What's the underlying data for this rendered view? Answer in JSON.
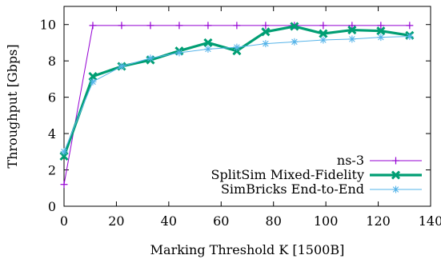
{
  "chart_data": {
    "type": "line",
    "title": "",
    "xlabel": "Marking Threshold K [1500B]",
    "ylabel": "Throughput [Gbps]",
    "xlim": [
      0,
      140
    ],
    "ylim": [
      0,
      11
    ],
    "xticks": [
      "0",
      "20",
      "40",
      "60",
      "80",
      "100",
      "120",
      "140"
    ],
    "yticks": [
      "0",
      "2",
      "4",
      "6",
      "8",
      "10"
    ],
    "grid": false,
    "legend_position": "bottom-right",
    "series": [
      {
        "name": "ns-3",
        "color": "#9400d3",
        "marker": "plus",
        "x": [
          0,
          11,
          22,
          33,
          44,
          55,
          66,
          77,
          88,
          99,
          110,
          121,
          132
        ],
        "y": [
          1.2,
          9.95,
          9.95,
          9.95,
          9.95,
          9.95,
          9.95,
          9.95,
          9.95,
          9.95,
          9.95,
          9.95,
          9.95
        ]
      },
      {
        "name": "SplitSim Mixed-Fidelity",
        "color": "#009e73",
        "marker": "x",
        "x": [
          0,
          11,
          22,
          33,
          44,
          55,
          66,
          77,
          88,
          99,
          110,
          121,
          132
        ],
        "y": [
          2.75,
          7.15,
          7.7,
          8.05,
          8.55,
          9.0,
          8.55,
          9.6,
          9.9,
          9.5,
          9.7,
          9.65,
          9.4
        ]
      },
      {
        "name": "SimBricks End-to-End",
        "color": "#56b4e9",
        "marker": "star",
        "x": [
          0,
          11,
          22,
          33,
          44,
          55,
          66,
          77,
          88,
          99,
          110,
          121,
          132
        ],
        "y": [
          3.0,
          6.85,
          7.7,
          8.15,
          8.45,
          8.65,
          8.75,
          8.95,
          9.05,
          9.15,
          9.2,
          9.3,
          9.35
        ]
      }
    ]
  }
}
